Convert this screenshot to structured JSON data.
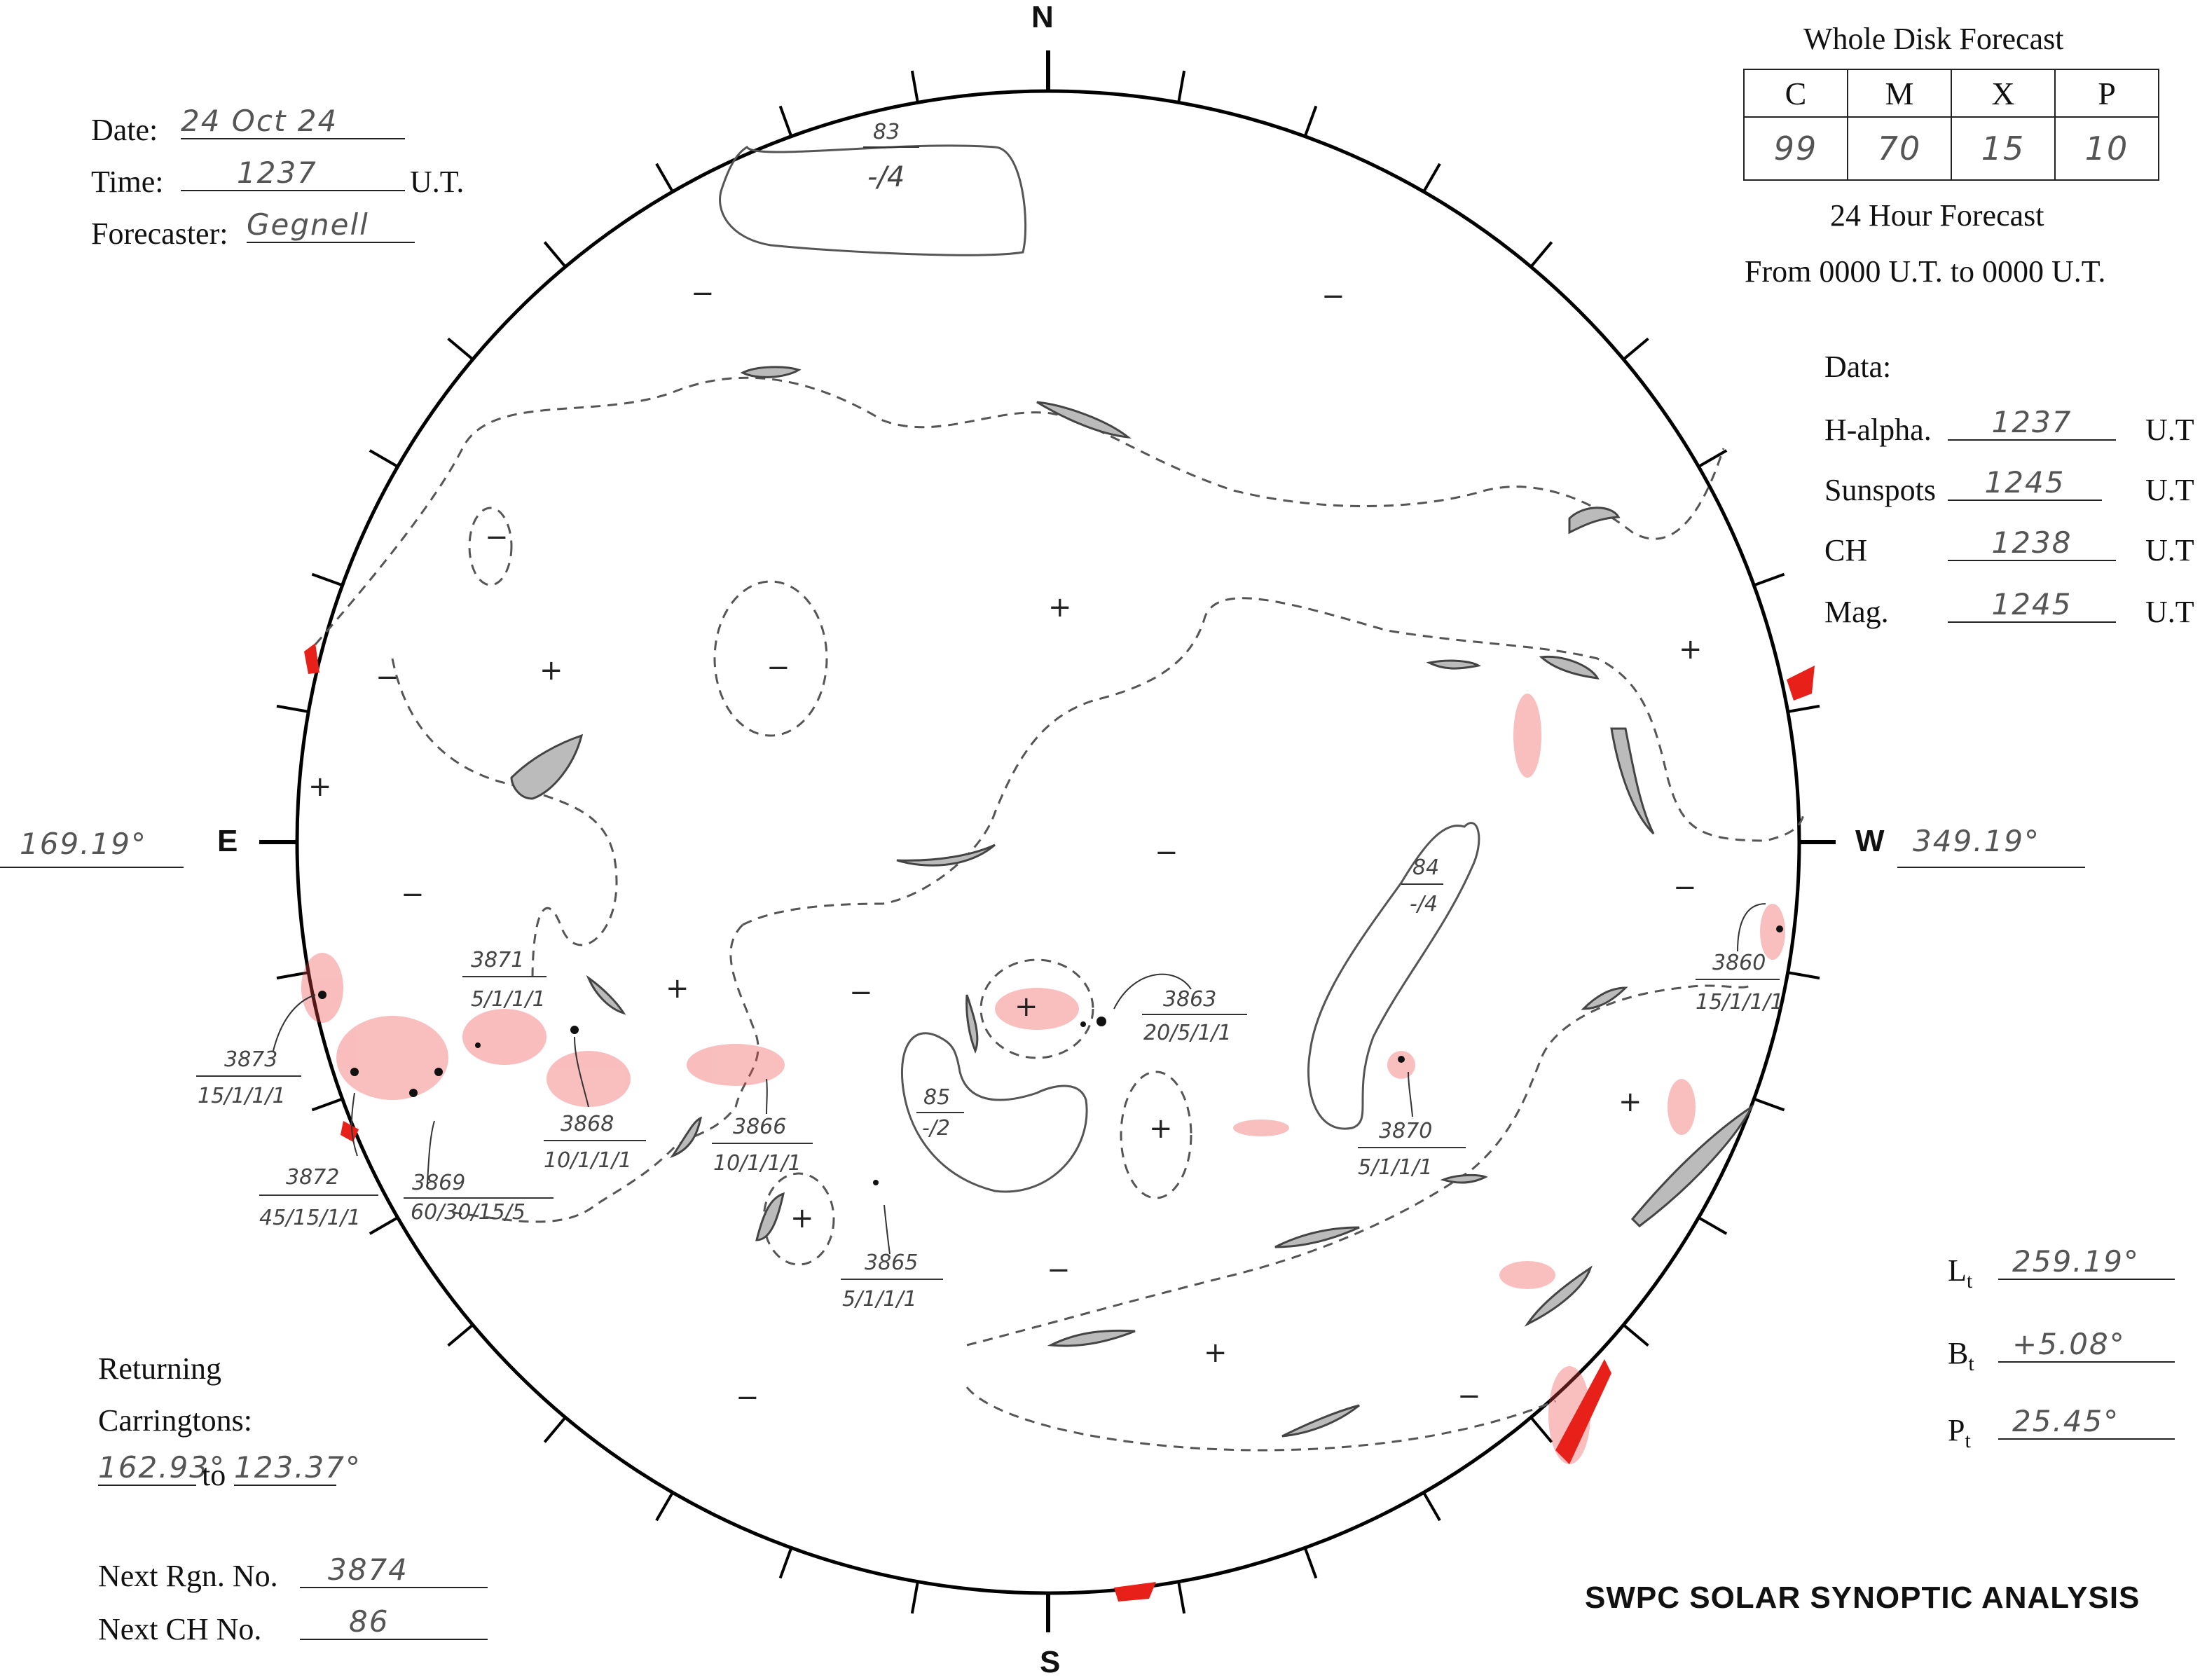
{
  "header": {
    "date_label": "Date:",
    "date_value": "24 Oct 24",
    "time_label": "Time:",
    "time_value": "1237",
    "time_unit": "U.T.",
    "forecaster_label": "Forecaster:",
    "forecaster_value": "Gegnell"
  },
  "forecast": {
    "title": "Whole Disk Forecast",
    "columns": [
      "C",
      "M",
      "X",
      "P"
    ],
    "values": [
      "99",
      "70",
      "15",
      "10"
    ],
    "subtitle": "24 Hour Forecast",
    "range": "From 0000 U.T. to 0000 U.T."
  },
  "data_panel": {
    "heading": "Data:",
    "rows": [
      {
        "label": "H-alpha.",
        "value": "1237",
        "unit": "U.T"
      },
      {
        "label": "Sunspots",
        "value": "1245",
        "unit": "U.T"
      },
      {
        "label": "CH",
        "value": "1238",
        "unit": "U.T"
      },
      {
        "label": "Mag.",
        "value": "1245",
        "unit": "U.T"
      }
    ]
  },
  "compass": {
    "north": "N",
    "south": "S",
    "east": "E",
    "west": "W"
  },
  "east_longitude": "169.19°",
  "west_longitude": "349.19°",
  "orientation": {
    "lt_label": "L",
    "lt_sub": "t",
    "lt_value": "259.19°",
    "bt_label": "B",
    "bt_sub": "t",
    "bt_value": "+5.08°",
    "pt_label": "P",
    "pt_sub": "t",
    "pt_value": "25.45°"
  },
  "returning": {
    "line1": "Returning",
    "line2": "Carringtons:",
    "from": "162.93°",
    "to_word": "to",
    "to": "123.37°"
  },
  "next_numbers": {
    "rgn_label": "Next Rgn. No.",
    "rgn_value": "3874",
    "ch_label": "Next CH No.",
    "ch_value": "86"
  },
  "footer_title": "SWPC SOLAR SYNOPTIC ANALYSIS",
  "regions": [
    {
      "number": "3873",
      "data": "15/1/1/1"
    },
    {
      "number": "3872",
      "data": "45/15/1/1"
    },
    {
      "number": "3871",
      "data": "5/1/1/1"
    },
    {
      "number": "3869",
      "data": "60/30/15/5"
    },
    {
      "number": "3868",
      "data": "10/1/1/1"
    },
    {
      "number": "3866",
      "data": "10/1/1/1"
    },
    {
      "number": "3865",
      "data": "5/1/1/1"
    },
    {
      "number": "3863",
      "data": "20/5/1/1"
    },
    {
      "number": "3870",
      "data": "5/1/1/1"
    },
    {
      "number": "3860",
      "data": "15/1/1/1"
    }
  ],
  "coronal_holes": [
    {
      "number": "83",
      "value": "-/4"
    },
    {
      "number": "84",
      "value": "-/4"
    },
    {
      "number": "85",
      "value": "-/2"
    }
  ],
  "polarity_marks": {
    "plus": "+",
    "minus": "−"
  }
}
